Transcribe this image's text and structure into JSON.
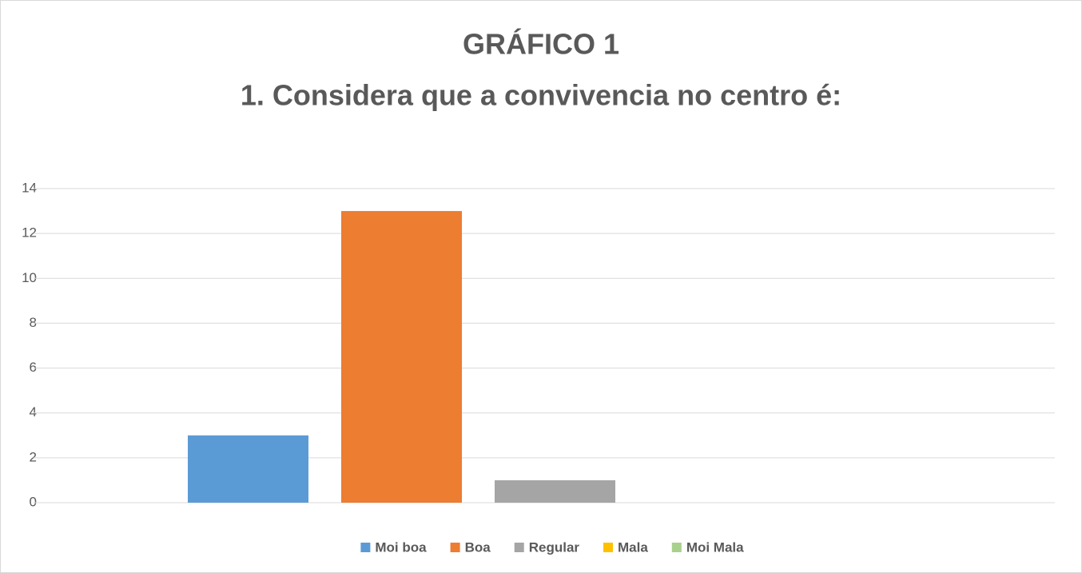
{
  "chart_data": {
    "type": "bar",
    "title": "GRÁFICO 1",
    "subtitle": "1. Considera que a convivencia no centro é:",
    "series": [
      {
        "name": "Moi boa",
        "color": "#5b9bd5",
        "values": [
          3
        ]
      },
      {
        "name": "Boa",
        "color": "#ed7d31",
        "values": [
          13
        ]
      },
      {
        "name": "Regular",
        "color": "#a5a5a5",
        "values": [
          1
        ]
      },
      {
        "name": "Mala",
        "color": "#ffc000",
        "values": [
          0
        ]
      },
      {
        "name": "Moi Mala",
        "color": "#a9d18e",
        "values": [
          0
        ]
      }
    ],
    "ylim": [
      0,
      14
    ],
    "yticks": [
      0,
      2,
      4,
      6,
      8,
      10,
      12,
      14
    ],
    "grid": true,
    "legend": "bottom"
  }
}
